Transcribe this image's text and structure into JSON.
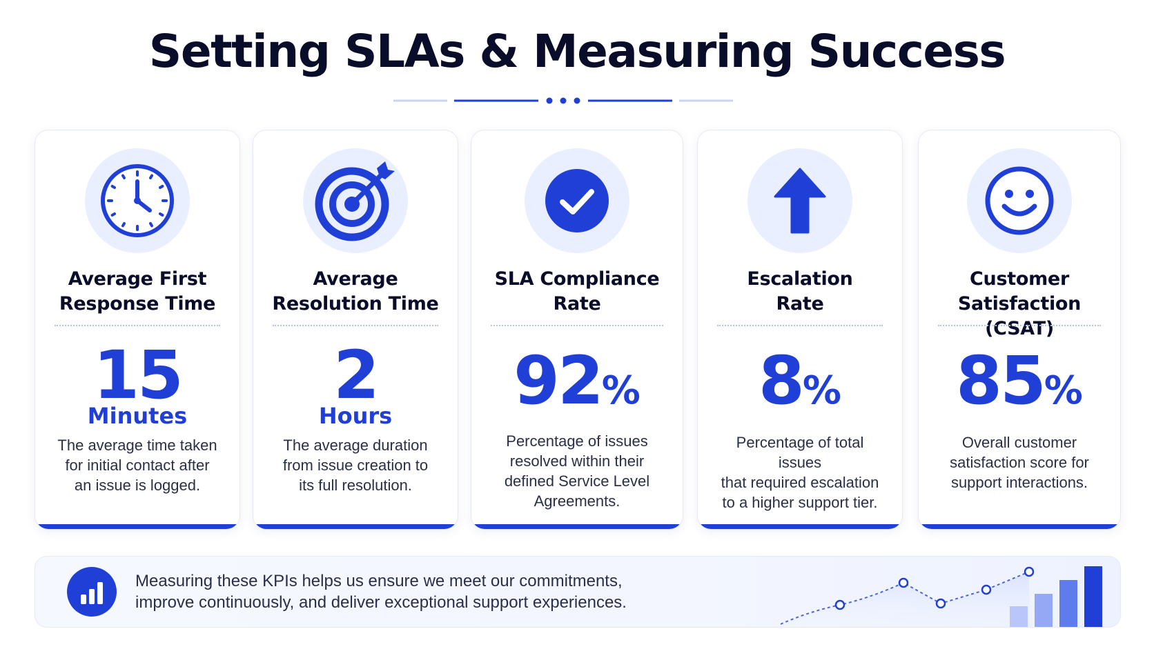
{
  "title": "Setting SLAs & Measuring Success",
  "cards": [
    {
      "icon": "clock-icon",
      "title_line1": "Average First",
      "title_line2": "Response Time",
      "value": "15",
      "suffix": "",
      "unit": "Minutes",
      "desc_line1": "The average time taken",
      "desc_line2": "for initial contact after",
      "desc_line3": "an issue is logged.",
      "desc_line4": ""
    },
    {
      "icon": "target-icon",
      "title_line1": "Average",
      "title_line2": "Resolution Time",
      "value": "2",
      "suffix": "",
      "unit": "Hours",
      "desc_line1": "The average duration",
      "desc_line2": "from issue creation to",
      "desc_line3": "its full resolution.",
      "desc_line4": ""
    },
    {
      "icon": "checkmark-icon",
      "title_line1": "SLA Compliance",
      "title_line2": "Rate",
      "value": "92",
      "suffix": "%",
      "unit": "",
      "desc_line1": "Percentage of issues",
      "desc_line2": "resolved within their",
      "desc_line3": "defined Service Level",
      "desc_line4": "Agreements."
    },
    {
      "icon": "arrow-up-icon",
      "title_line1": "Escalation",
      "title_line2": "Rate",
      "value": "8",
      "suffix": "%",
      "unit": "",
      "desc_line1": "Percentage of total issues",
      "desc_line2": "that required escalation",
      "desc_line3": "to a higher support tier.",
      "desc_line4": ""
    },
    {
      "icon": "smiley-icon",
      "title_line1": "Customer",
      "title_line2": "Satisfaction (CSAT)",
      "value": "85",
      "suffix": "%",
      "unit": "",
      "desc_line1": "Overall customer",
      "desc_line2": "satisfaction score for",
      "desc_line3": "support interactions.",
      "desc_line4": ""
    }
  ],
  "banner": {
    "icon": "bar-chart-icon",
    "line1": "Measuring these KPIs helps us ensure we meet our commitments,",
    "line2": "improve continuously, and deliver exceptional support experiences.",
    "decoration": "trend-chart-icon"
  },
  "colors": {
    "accent": "#1f3fd6",
    "icon_bg": "#eaefff",
    "title": "#0a0d2a",
    "body_text": "#2a2f48"
  }
}
